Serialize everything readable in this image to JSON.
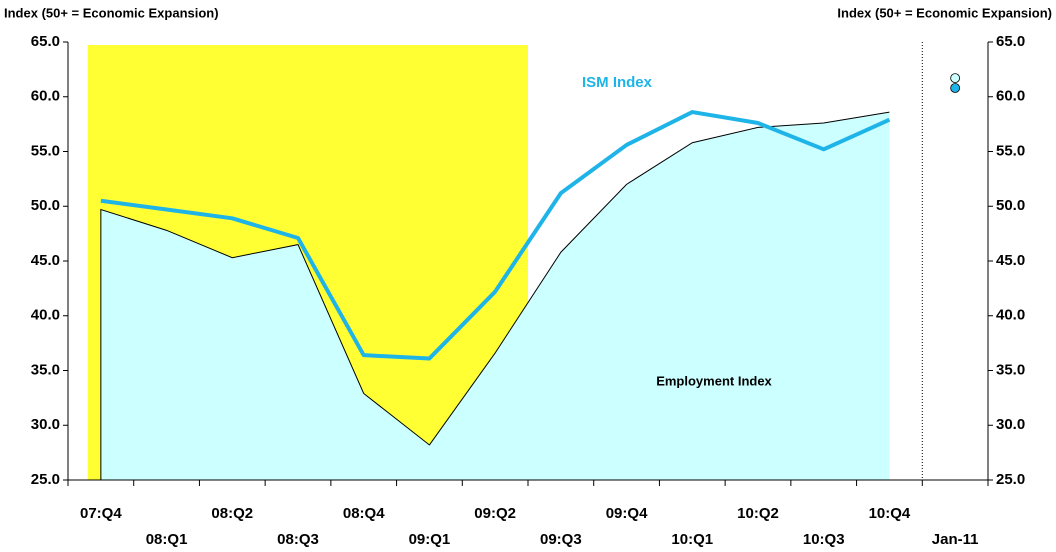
{
  "chart_data": {
    "type": "line",
    "y_axis_label": "Index (50+ = Economic Expansion)",
    "y2_axis_label": "Index (50+ = Economic Expansion)",
    "categories": [
      "07:Q4",
      "08:Q1",
      "08:Q2",
      "08:Q3",
      "08:Q4",
      "09:Q1",
      "09:Q2",
      "09:Q3",
      "09:Q4",
      "10:Q1",
      "10:Q2",
      "10:Q3",
      "10:Q4",
      "Jan-11"
    ],
    "series": [
      {
        "name": "Employment Index",
        "style": "area",
        "color": "#ccffff",
        "line_color": "#000000",
        "marker_color": "#ccffff",
        "values": [
          49.7,
          47.8,
          45.3,
          46.5,
          32.9,
          28.2,
          36.6,
          45.8,
          52.0,
          55.8,
          57.2,
          57.6,
          58.6,
          null
        ],
        "marker_values": [
          null,
          null,
          null,
          null,
          null,
          null,
          null,
          null,
          null,
          null,
          null,
          null,
          null,
          61.7
        ]
      },
      {
        "name": "ISM Index",
        "style": "line",
        "color": "#1fb4e8",
        "marker_color": "#1fb4e8",
        "values": [
          50.5,
          49.7,
          48.9,
          47.1,
          36.4,
          36.1,
          42.2,
          51.2,
          55.6,
          58.6,
          57.6,
          55.2,
          57.9,
          null
        ],
        "marker_values": [
          null,
          null,
          null,
          null,
          null,
          null,
          null,
          null,
          null,
          null,
          null,
          null,
          null,
          60.8
        ]
      }
    ],
    "shading": {
      "start": "07:Q4",
      "end": "09:Q2",
      "color": "#ffff33"
    },
    "divider_before": "Jan-11",
    "ylim": [
      25,
      65
    ],
    "yticks": [
      {
        "value": 25,
        "label": "25.0"
      },
      {
        "value": 30,
        "label": "30.0"
      },
      {
        "value": 35,
        "label": "35.0"
      },
      {
        "value": 40,
        "label": "40.0"
      },
      {
        "value": 45,
        "label": "45.0"
      },
      {
        "value": 50,
        "label": "50.0"
      },
      {
        "value": 55,
        "label": "55.0"
      },
      {
        "value": 60,
        "label": "60.0"
      },
      {
        "value": 65,
        "label": "65.0"
      }
    ],
    "y2lim": [
      25,
      65
    ],
    "y2ticks": [
      {
        "value": 25,
        "label": "25.0"
      },
      {
        "value": 30,
        "label": "30.0"
      },
      {
        "value": 35,
        "label": "35.0"
      },
      {
        "value": 40,
        "label": "40.0"
      },
      {
        "value": 45,
        "label": "45.0"
      },
      {
        "value": 50,
        "label": "50.0"
      },
      {
        "value": 55,
        "label": "55.0"
      },
      {
        "value": 60,
        "label": "60.0"
      },
      {
        "value": 65,
        "label": "65.0"
      }
    ],
    "grid": false
  }
}
